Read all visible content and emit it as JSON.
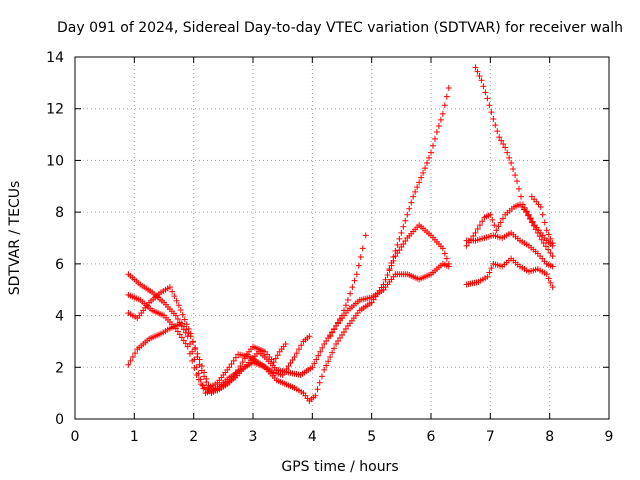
{
  "chart_data": {
    "type": "scatter",
    "title": "Day 091 of 2024, Sidereal Day-to-day VTEC variation (SDTVAR) for receiver walh",
    "xlabel": "GPS time / hours",
    "ylabel": "SDTVAR / TECUs",
    "xlim": [
      0,
      9
    ],
    "ylim": [
      0,
      14
    ],
    "xticks": [
      "0",
      "1",
      "2",
      "3",
      "4",
      "5",
      "6",
      "7",
      "8",
      "9"
    ],
    "yticks": [
      "0",
      "2",
      "4",
      "6",
      "8",
      "10",
      "12",
      "14"
    ],
    "grid": true,
    "marker": "+",
    "color": "#ff0000",
    "series": [
      {
        "points": [
          [
            0.9,
            5.6
          ],
          [
            1.1,
            5.2
          ],
          [
            1.3,
            4.9
          ],
          [
            1.5,
            4.5
          ],
          [
            1.7,
            4.0
          ],
          [
            1.9,
            3.2
          ],
          [
            2.05,
            2.0
          ],
          [
            2.15,
            1.3
          ],
          [
            2.3,
            1.0
          ],
          [
            2.5,
            1.3
          ],
          [
            2.7,
            1.6
          ],
          [
            2.9,
            2.1
          ],
          [
            3.1,
            2.6
          ],
          [
            3.2,
            2.4
          ],
          [
            3.4,
            1.9
          ],
          [
            3.6,
            1.8
          ],
          [
            3.8,
            1.7
          ],
          [
            4.0,
            2.0
          ],
          [
            4.2,
            2.9
          ],
          [
            4.4,
            3.6
          ],
          [
            4.6,
            4.2
          ],
          [
            4.8,
            4.6
          ],
          [
            5.0,
            4.7
          ],
          [
            5.2,
            5.0
          ],
          [
            5.4,
            5.6
          ],
          [
            5.6,
            5.6
          ],
          [
            5.8,
            5.4
          ],
          [
            6.0,
            5.6
          ],
          [
            6.2,
            6.0
          ],
          [
            6.3,
            5.9
          ]
        ]
      },
      {
        "points": [
          [
            0.9,
            4.8
          ],
          [
            1.1,
            4.6
          ],
          [
            1.3,
            4.2
          ],
          [
            1.5,
            4.0
          ],
          [
            1.7,
            3.5
          ],
          [
            1.9,
            2.8
          ],
          [
            2.05,
            1.7
          ],
          [
            2.2,
            1.0
          ],
          [
            2.4,
            1.2
          ],
          [
            2.6,
            1.6
          ],
          [
            2.8,
            1.9
          ],
          [
            3.0,
            2.2
          ],
          [
            3.2,
            2.0
          ],
          [
            3.4,
            1.5
          ],
          [
            3.6,
            1.3
          ],
          [
            3.7,
            1.2
          ],
          [
            3.85,
            1.0
          ],
          [
            3.95,
            0.7
          ],
          [
            4.05,
            0.9
          ],
          [
            4.2,
            1.9
          ],
          [
            4.4,
            2.9
          ],
          [
            4.6,
            3.6
          ],
          [
            4.8,
            4.2
          ],
          [
            5.0,
            4.5
          ],
          [
            5.2,
            5.2
          ],
          [
            5.4,
            6.3
          ],
          [
            5.6,
            7.0
          ],
          [
            5.8,
            7.5
          ],
          [
            6.0,
            7.1
          ],
          [
            6.2,
            6.6
          ],
          [
            6.3,
            6.0
          ]
        ]
      },
      {
        "points": [
          [
            0.9,
            4.1
          ],
          [
            1.05,
            3.9
          ],
          [
            1.25,
            4.5
          ],
          [
            1.45,
            4.9
          ],
          [
            1.6,
            5.1
          ],
          [
            1.75,
            4.4
          ],
          [
            1.95,
            3.3
          ],
          [
            2.1,
            2.1
          ],
          [
            2.25,
            1.2
          ],
          [
            2.4,
            1.4
          ],
          [
            2.6,
            2.0
          ],
          [
            2.75,
            2.5
          ],
          [
            2.95,
            2.4
          ],
          [
            3.15,
            2.1
          ],
          [
            3.35,
            1.8
          ],
          [
            3.5,
            1.7
          ],
          [
            3.7,
            2.4
          ],
          [
            3.85,
            3.0
          ],
          [
            3.95,
            3.2
          ]
        ]
      },
      {
        "points": [
          [
            0.9,
            2.1
          ],
          [
            1.05,
            2.7
          ],
          [
            1.25,
            3.1
          ],
          [
            1.45,
            3.3
          ],
          [
            1.6,
            3.5
          ],
          [
            1.8,
            3.7
          ],
          [
            1.95,
            3.2
          ],
          [
            2.1,
            2.3
          ],
          [
            2.25,
            1.3
          ],
          [
            2.4,
            1.1
          ],
          [
            2.6,
            1.4
          ],
          [
            2.75,
            1.9
          ],
          [
            2.9,
            2.5
          ],
          [
            3.0,
            2.8
          ],
          [
            3.2,
            2.6
          ],
          [
            3.35,
            2.2
          ],
          [
            3.45,
            2.6
          ],
          [
            3.55,
            2.9
          ]
        ]
      },
      {
        "points": [
          [
            4.3,
            3.2
          ],
          [
            4.5,
            4.0
          ],
          [
            4.6,
            4.6
          ],
          [
            4.75,
            5.6
          ],
          [
            4.85,
            6.6
          ],
          [
            4.9,
            7.1
          ]
        ]
      },
      {
        "points": [
          [
            5.3,
            5.8
          ],
          [
            5.5,
            7.2
          ],
          [
            5.7,
            8.6
          ],
          [
            5.9,
            9.7
          ],
          [
            6.0,
            10.3
          ],
          [
            6.1,
            11.1
          ],
          [
            6.2,
            11.8
          ],
          [
            6.3,
            12.8
          ]
        ]
      },
      {
        "points": [
          [
            6.75,
            13.6
          ],
          [
            6.85,
            13.1
          ],
          [
            6.95,
            12.4
          ],
          [
            7.05,
            11.6
          ],
          [
            7.15,
            10.9
          ],
          [
            7.25,
            10.5
          ],
          [
            7.35,
            9.9
          ],
          [
            7.45,
            9.2
          ],
          [
            7.55,
            8.3
          ],
          [
            7.65,
            7.9
          ],
          [
            7.75,
            7.5
          ],
          [
            7.85,
            7.2
          ],
          [
            7.95,
            6.9
          ],
          [
            8.05,
            6.7
          ]
        ]
      },
      {
        "points": [
          [
            6.6,
            6.7
          ],
          [
            6.75,
            7.2
          ],
          [
            6.9,
            7.8
          ],
          [
            7.0,
            7.9
          ],
          [
            7.1,
            7.3
          ],
          [
            7.25,
            7.9
          ],
          [
            7.4,
            8.2
          ],
          [
            7.5,
            8.3
          ],
          [
            7.6,
            8.0
          ],
          [
            7.7,
            7.6
          ],
          [
            7.8,
            7.2
          ],
          [
            7.9,
            6.8
          ],
          [
            8.05,
            6.3
          ]
        ]
      },
      {
        "points": [
          [
            6.6,
            6.9
          ],
          [
            6.75,
            6.9
          ],
          [
            6.9,
            7.0
          ],
          [
            7.05,
            7.1
          ],
          [
            7.2,
            7.0
          ],
          [
            7.35,
            7.2
          ],
          [
            7.5,
            6.9
          ],
          [
            7.65,
            6.7
          ],
          [
            7.8,
            6.4
          ],
          [
            7.95,
            6.0
          ],
          [
            8.05,
            5.9
          ]
        ]
      },
      {
        "points": [
          [
            6.6,
            5.2
          ],
          [
            6.8,
            5.3
          ],
          [
            6.95,
            5.5
          ],
          [
            7.05,
            6.0
          ],
          [
            7.2,
            5.9
          ],
          [
            7.35,
            6.2
          ],
          [
            7.5,
            5.9
          ],
          [
            7.65,
            5.7
          ],
          [
            7.8,
            5.8
          ],
          [
            7.95,
            5.6
          ],
          [
            8.05,
            5.1
          ]
        ]
      },
      {
        "points": [
          [
            7.7,
            8.6
          ],
          [
            7.85,
            8.2
          ],
          [
            7.95,
            7.3
          ],
          [
            8.05,
            6.8
          ]
        ]
      }
    ]
  }
}
